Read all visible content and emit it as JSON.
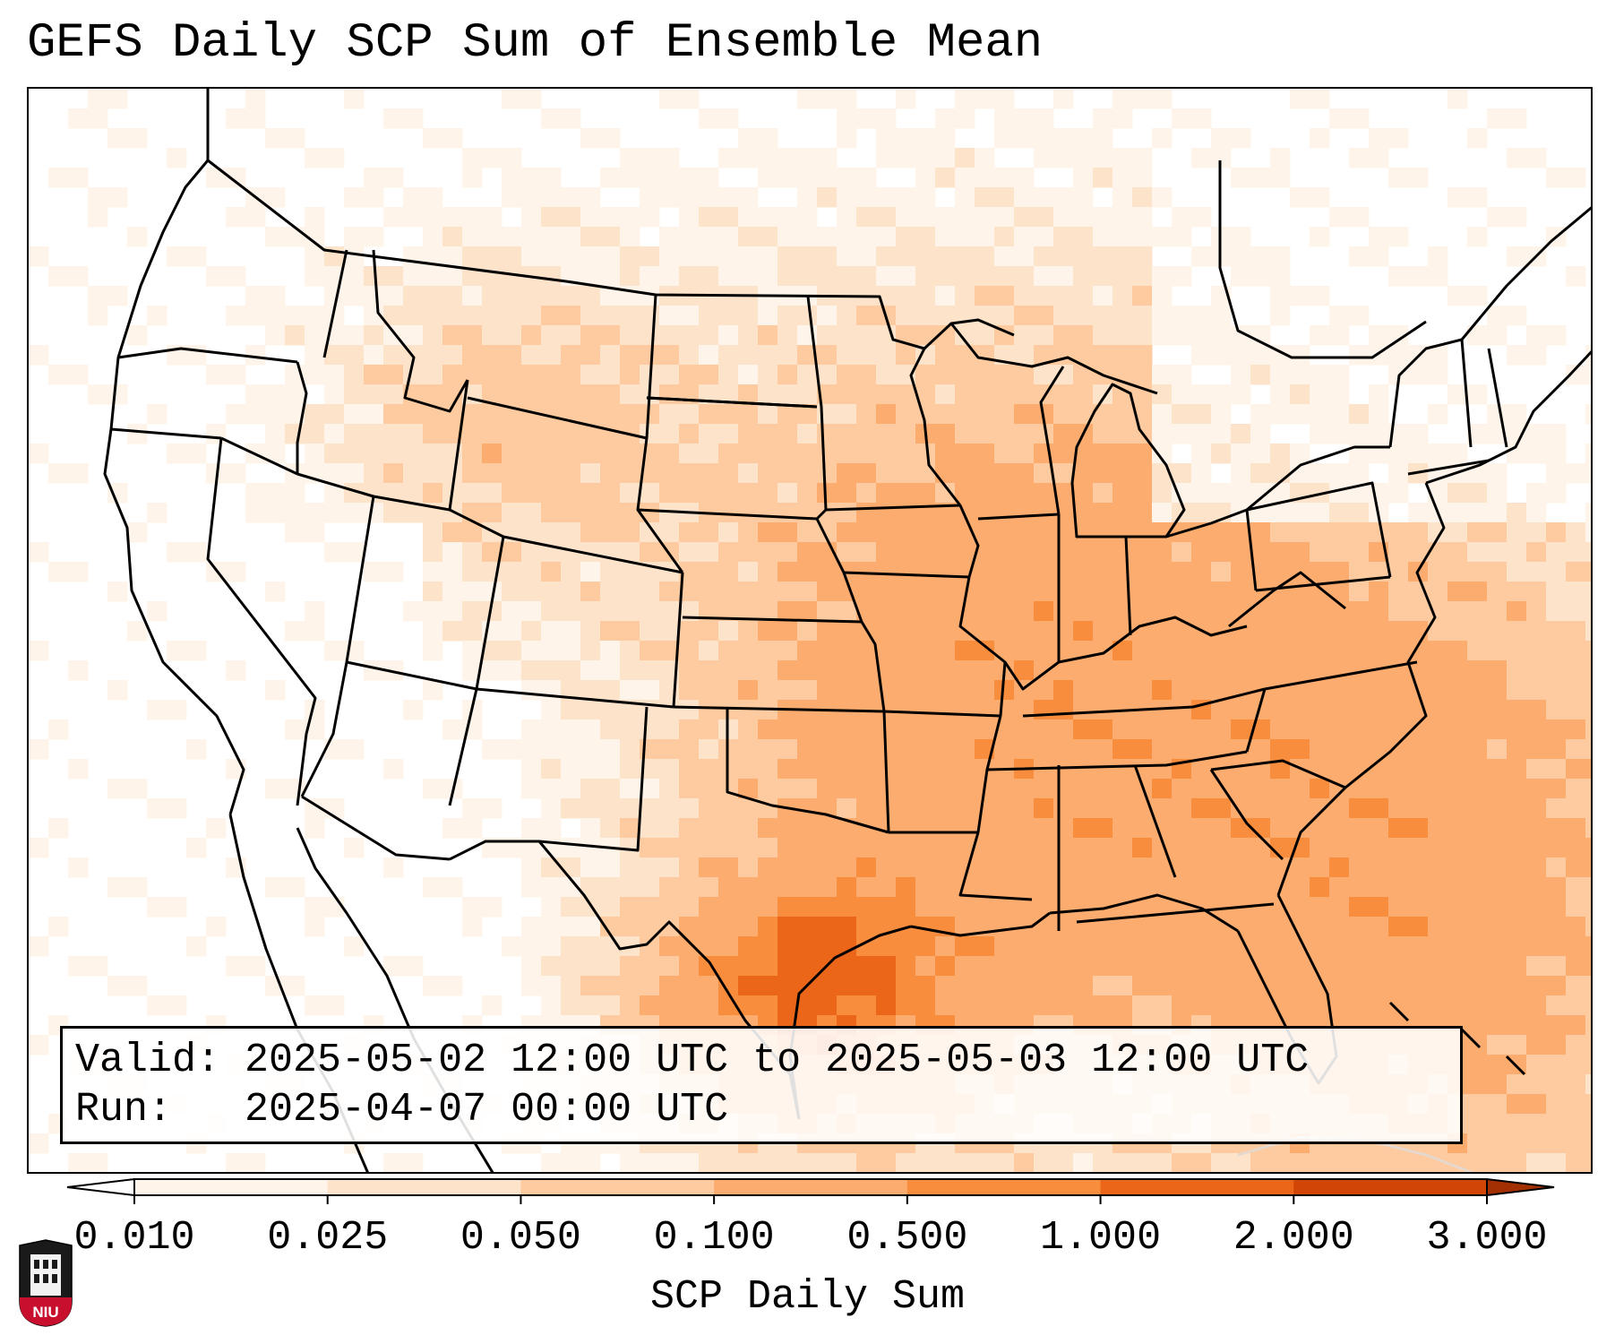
{
  "title": "GEFS Daily SCP Sum of Ensemble Mean",
  "info": {
    "valid_line": "Valid: 2025-05-02 12:00 UTC to 2025-05-03 12:00 UTC",
    "run_line": "Run:   2025-04-07 00:00 UTC"
  },
  "colorbar": {
    "label": "SCP Daily Sum",
    "ticks": [
      "0.010",
      "0.025",
      "0.050",
      "0.100",
      "0.500",
      "1.000",
      "2.000",
      "3.000"
    ],
    "colors": [
      "#fff4ea",
      "#fee3cb",
      "#fdcb9f",
      "#fcac6e",
      "#f98d3e",
      "#eb6619",
      "#d14506"
    ],
    "over_color": "#a33003",
    "under_color": "#ffffff"
  },
  "logo": {
    "text": "NIU",
    "color": "#c8102e"
  }
}
